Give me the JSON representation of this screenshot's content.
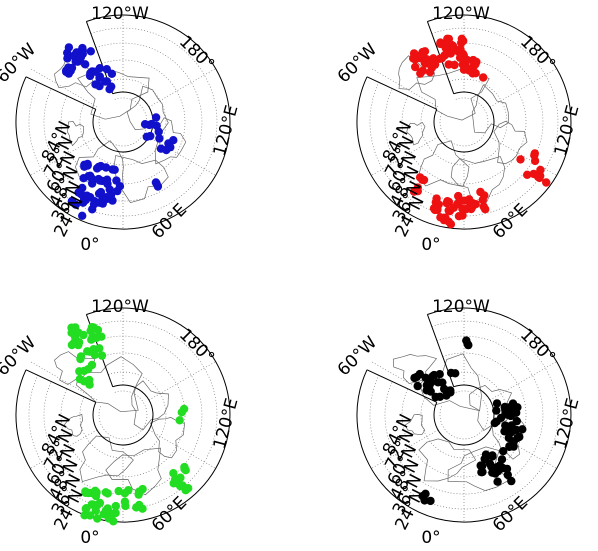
{
  "figure": {
    "lon_labels": [
      "120°W",
      "180°",
      "120°E",
      "60°E",
      "0°",
      "60°W"
    ],
    "lat_labels": [
      "84°N",
      "72°N",
      "60°N",
      "48°N",
      "36°N",
      "24°N"
    ]
  },
  "panels": [
    {
      "id": "blue",
      "color": "#1111cc"
    },
    {
      "id": "red",
      "color": "#ee1111"
    },
    {
      "id": "green",
      "color": "#22dd22"
    },
    {
      "id": "black",
      "color": "#000000"
    }
  ]
}
